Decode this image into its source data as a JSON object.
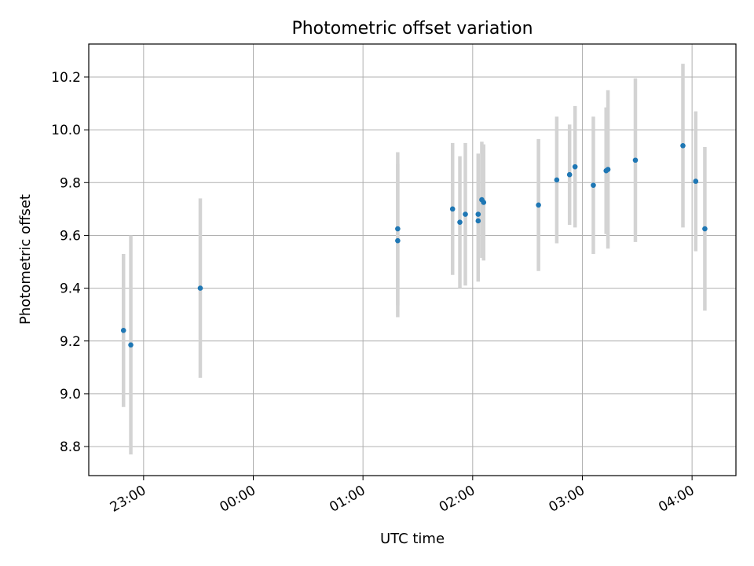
{
  "chart_data": {
    "type": "scatter",
    "title": "Photometric offset variation",
    "xlabel": "UTC time",
    "ylabel": "Photometric offset",
    "x_tick_labels": [
      "23:00",
      "00:00",
      "01:00",
      "02:00",
      "03:00",
      "04:00"
    ],
    "y_tick_labels": [
      "8.8",
      "9.0",
      "9.2",
      "9.4",
      "9.6",
      "9.8",
      "10.0",
      "10.2"
    ],
    "y_ticks": [
      8.8,
      9.0,
      9.2,
      9.4,
      9.6,
      9.8,
      10.0,
      10.2
    ],
    "ylim": [
      8.69,
      10.325
    ],
    "grid": true,
    "colors": {
      "point": "#1f77b4",
      "errorbar": "#d3d3d3",
      "grid": "#b0b0b0"
    },
    "series": [
      {
        "x": [
          "22:49",
          "22:53",
          "23:31",
          "01:19",
          "01:19",
          "01:49",
          "01:53",
          "01:56",
          "02:03",
          "02:03",
          "02:05",
          "02:06",
          "02:36",
          "02:46",
          "02:53",
          "02:56",
          "03:06",
          "03:13",
          "03:14",
          "03:29",
          "03:55",
          "04:02",
          "04:07"
        ],
        "y": [
          9.24,
          9.185,
          9.4,
          9.625,
          9.58,
          9.7,
          9.65,
          9.68,
          9.68,
          9.655,
          9.735,
          9.725,
          9.715,
          9.81,
          9.83,
          9.86,
          9.79,
          9.845,
          9.85,
          9.885,
          9.94,
          9.805,
          9.625
        ],
        "yerr": [
          0.29,
          0.415,
          0.34,
          0.29,
          0.29,
          0.25,
          0.25,
          0.27,
          0.23,
          0.23,
          0.22,
          0.22,
          0.25,
          0.24,
          0.19,
          0.23,
          0.26,
          0.24,
          0.3,
          0.31,
          0.31,
          0.265,
          0.31
        ]
      }
    ]
  }
}
